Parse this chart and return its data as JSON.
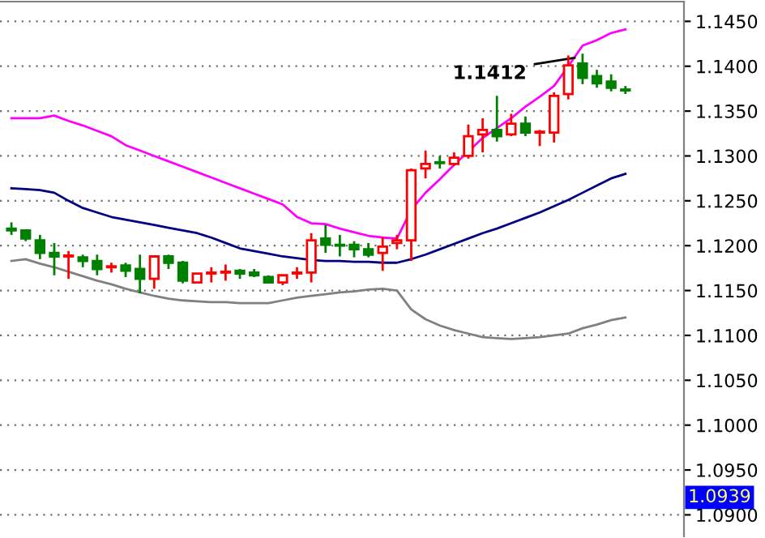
{
  "chart_data": {
    "type": "candlestick",
    "categories": [
      null,
      null,
      null,
      null,
      null,
      null,
      null,
      null,
      null,
      null,
      null,
      null,
      null,
      null,
      null,
      null,
      null,
      null,
      null,
      null,
      null,
      null,
      null,
      null,
      null,
      null,
      null,
      null,
      null,
      null,
      null,
      null,
      null,
      null,
      null,
      null,
      null,
      null,
      null,
      null,
      null,
      null,
      null,
      null
    ],
    "ohlc": [
      [
        1.1219,
        1.1226,
        1.1212,
        1.1217
      ],
      [
        1.1217,
        1.1217,
        1.1205,
        1.1208
      ],
      [
        1.1206,
        1.1212,
        1.1185,
        1.1192
      ],
      [
        1.1192,
        1.1203,
        1.1167,
        1.1188
      ],
      [
        1.1188,
        1.1194,
        1.1163,
        1.1189
      ],
      [
        1.1187,
        1.119,
        1.1176,
        1.1183
      ],
      [
        1.1183,
        1.119,
        1.1167,
        1.1174
      ],
      [
        1.1176,
        1.1181,
        1.117,
        1.1177
      ],
      [
        1.1178,
        1.1181,
        1.1165,
        1.1172
      ],
      [
        1.1174,
        1.119,
        1.1147,
        1.1163
      ],
      [
        1.1163,
        1.1188,
        1.1152,
        1.1188
      ],
      [
        1.1188,
        1.119,
        1.1174,
        1.1181
      ],
      [
        1.1181,
        1.1183,
        1.1158,
        1.1161
      ],
      [
        1.1159,
        1.1169,
        1.1158,
        1.1169
      ],
      [
        1.1169,
        1.1176,
        1.1159,
        1.117
      ],
      [
        1.117,
        1.1179,
        1.1161,
        1.1171
      ],
      [
        1.1172,
        1.1174,
        1.1163,
        1.1169
      ],
      [
        1.117,
        1.1174,
        1.1165,
        1.1167
      ],
      [
        1.1165,
        1.1167,
        1.1158,
        1.1159
      ],
      [
        1.1159,
        1.1167,
        1.1156,
        1.1167
      ],
      [
        1.1169,
        1.1176,
        1.1163,
        1.117
      ],
      [
        1.117,
        1.1214,
        1.1159,
        1.1206
      ],
      [
        1.1208,
        1.1223,
        1.1192,
        1.1201
      ],
      [
        1.1201,
        1.1212,
        1.1188,
        1.12
      ],
      [
        1.1201,
        1.1205,
        1.1187,
        1.1196
      ],
      [
        1.1196,
        1.1203,
        1.1187,
        1.119
      ],
      [
        1.1192,
        1.121,
        1.1172,
        1.1199
      ],
      [
        1.1203,
        1.1212,
        1.1196,
        1.1206
      ],
      [
        1.1206,
        1.1286,
        1.1183,
        1.1284
      ],
      [
        1.1286,
        1.1306,
        1.1275,
        1.1291
      ],
      [
        1.1293,
        1.13,
        1.1286,
        1.1292
      ],
      [
        1.1291,
        1.1304,
        1.1289,
        1.1298
      ],
      [
        1.13,
        1.1335,
        1.1297,
        1.1322
      ],
      [
        1.1324,
        1.1342,
        1.1304,
        1.1329
      ],
      [
        1.1329,
        1.1367,
        1.1316,
        1.1322
      ],
      [
        1.1324,
        1.1347,
        1.1322,
        1.1336
      ],
      [
        1.1336,
        1.1344,
        1.1322,
        1.1326
      ],
      [
        1.1326,
        1.1329,
        1.1311,
        1.1327
      ],
      [
        1.1326,
        1.1371,
        1.1315,
        1.1367
      ],
      [
        1.1369,
        1.1412,
        1.1363,
        1.1401
      ],
      [
        1.1403,
        1.1414,
        1.138,
        1.1387
      ],
      [
        1.1389,
        1.1396,
        1.1376,
        1.1381
      ],
      [
        1.1383,
        1.1391,
        1.1372,
        1.1376
      ],
      [
        1.1374,
        1.1378,
        1.1369,
        1.1373
      ]
    ],
    "colors": [
      "#008000",
      "#008000",
      "#008000",
      "#008000",
      "#ff0000",
      "#008000",
      "#008000",
      "#ff0000",
      "#008000",
      "#008000",
      "#ff0000",
      "#008000",
      "#008000",
      "#ff0000",
      "#ff0000",
      "#ff0000",
      "#008000",
      "#008000",
      "#008000",
      "#ff0000",
      "#ff0000",
      "#ff0000",
      "#008000",
      "#008000",
      "#008000",
      "#008000",
      "#ff0000",
      "#ff0000",
      "#ff0000",
      "#ff0000",
      "#008000",
      "#ff0000",
      "#ff0000",
      "#ff0000",
      "#008000",
      "#ff0000",
      "#008000",
      "#ff0000",
      "#ff0000",
      "#ff0000",
      "#008000",
      "#008000",
      "#008000",
      "#008000"
    ],
    "series": [
      {
        "type": "line",
        "color": "#ff00ff",
        "values": [
          1.1342,
          1.1342,
          1.1342,
          1.1345,
          1.1339,
          1.1334,
          1.1328,
          1.1322,
          1.1312,
          1.1306,
          1.13,
          1.1294,
          1.1288,
          1.1282,
          1.1276,
          1.127,
          1.1264,
          1.1258,
          1.1252,
          1.1246,
          1.1232,
          1.1225,
          1.1224,
          1.1219,
          1.1215,
          1.1211,
          1.1209,
          1.1208,
          1.124,
          1.1259,
          1.1274,
          1.129,
          1.1305,
          1.132,
          1.1331,
          1.1342,
          1.1355,
          1.1366,
          1.1378,
          1.14,
          1.1423,
          1.1429,
          1.1437,
          1.1441
        ]
      },
      {
        "type": "line",
        "color": "#000080",
        "values": [
          1.1264,
          1.1263,
          1.1262,
          1.1259,
          1.125,
          1.1242,
          1.1237,
          1.1232,
          1.1229,
          1.1226,
          1.1223,
          1.122,
          1.1217,
          1.1214,
          1.1209,
          1.1203,
          1.1197,
          1.1194,
          1.1191,
          1.1188,
          1.1186,
          1.1184,
          1.1183,
          1.1183,
          1.1182,
          1.1182,
          1.1181,
          1.1181,
          1.1185,
          1.119,
          1.1196,
          1.1202,
          1.1208,
          1.1214,
          1.1219,
          1.1225,
          1.1231,
          1.1237,
          1.1244,
          1.1251,
          1.1259,
          1.1267,
          1.1275,
          1.128
        ]
      },
      {
        "type": "line",
        "color": "#808080",
        "values": [
          1.1183,
          1.1185,
          1.118,
          1.1176,
          1.1171,
          1.1166,
          1.1161,
          1.1157,
          1.1152,
          1.1148,
          1.1144,
          1.1141,
          1.1139,
          1.1138,
          1.1137,
          1.1137,
          1.1136,
          1.1136,
          1.1136,
          1.1139,
          1.1142,
          1.1144,
          1.1146,
          1.1148,
          1.1149,
          1.1151,
          1.1152,
          1.115,
          1.1129,
          1.1118,
          1.1111,
          1.1106,
          1.1102,
          1.1098,
          1.1097,
          1.1096,
          1.1097,
          1.1098,
          1.11,
          1.1102,
          1.1108,
          1.1112,
          1.1117,
          1.112
        ]
      }
    ],
    "ylim": [
      1.0876,
      1.1472
    ],
    "yticks": [
      {
        "value": 1.09,
        "label": "1.0900"
      },
      {
        "value": 1.095,
        "label": "1.0950"
      },
      {
        "value": 1.1,
        "label": "1.1000"
      },
      {
        "value": 1.105,
        "label": "1.1050"
      },
      {
        "value": 1.11,
        "label": "1.1100"
      },
      {
        "value": 1.115,
        "label": "1.1150"
      },
      {
        "value": 1.12,
        "label": "1.1200"
      },
      {
        "value": 1.125,
        "label": "1.1250"
      },
      {
        "value": 1.13,
        "label": "1.1300"
      },
      {
        "value": 1.135,
        "label": "1.1350"
      },
      {
        "value": 1.14,
        "label": "1.1400"
      },
      {
        "value": 1.145,
        "label": "1.1450"
      }
    ],
    "grid": "y",
    "tick_labels": "y",
    "annotations": [
      "1.1412",
      "1.0939"
    ]
  }
}
